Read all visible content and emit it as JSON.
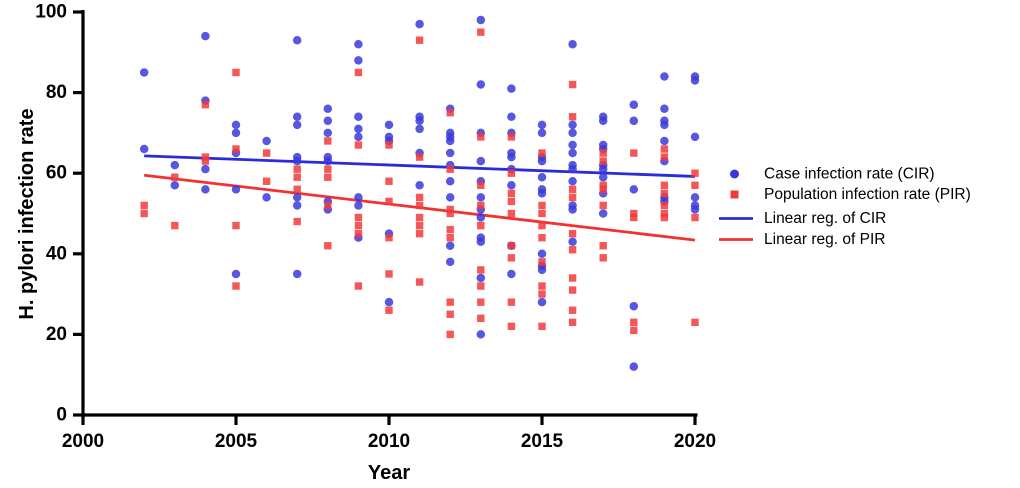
{
  "figure": {
    "background": "#ffffff"
  },
  "colors": {
    "cir_marker": "#3A3AD9",
    "pir_marker": "#F23939",
    "cir_line": "#2B2BD9",
    "pir_line": "#F23232",
    "axis": "#000000"
  },
  "legend": [
    {
      "key": "cir",
      "marker": "dot",
      "color": "#3A3AD9",
      "label": "Case infection rate (CIR)"
    },
    {
      "key": "pir",
      "marker": "square",
      "color": "#F23939",
      "label": "Population infection rate (PIR)"
    },
    {
      "key": "cir-reg",
      "marker": "line",
      "color": "#2B2BD9",
      "label": "Linear reg. of CIR"
    },
    {
      "key": "pir-reg",
      "marker": "line",
      "color": "#F23232",
      "label": "Linear reg. of PIR"
    }
  ],
  "chart_data": {
    "type": "scatter",
    "title": "",
    "xlabel": "Year",
    "ylabel": "H. pylori infection rate",
    "xlim": [
      2000,
      2020
    ],
    "ylim": [
      0,
      100
    ],
    "x_ticks": [
      2000,
      2005,
      2010,
      2015,
      2020
    ],
    "y_ticks": [
      0,
      20,
      40,
      60,
      80,
      100
    ],
    "grid": false,
    "legend_position": "right",
    "series": [
      {
        "name": "Case infection rate (CIR)",
        "type": "scatter",
        "marker": "circle",
        "color": "#3A3AD9",
        "points": [
          [
            2002,
            85
          ],
          [
            2002,
            66
          ],
          [
            2003,
            62
          ],
          [
            2003,
            57
          ],
          [
            2004,
            94
          ],
          [
            2004,
            78
          ],
          [
            2004,
            61
          ],
          [
            2004,
            56
          ],
          [
            2005,
            72
          ],
          [
            2005,
            70
          ],
          [
            2005,
            65
          ],
          [
            2005,
            56
          ],
          [
            2005,
            35
          ],
          [
            2006,
            68
          ],
          [
            2006,
            54
          ],
          [
            2007,
            93
          ],
          [
            2007,
            74
          ],
          [
            2007,
            72
          ],
          [
            2007,
            64
          ],
          [
            2007,
            63
          ],
          [
            2007,
            54
          ],
          [
            2007,
            52
          ],
          [
            2007,
            35
          ],
          [
            2008,
            76
          ],
          [
            2008,
            73
          ],
          [
            2008,
            70
          ],
          [
            2008,
            64
          ],
          [
            2008,
            63
          ],
          [
            2008,
            53
          ],
          [
            2008,
            51
          ],
          [
            2009,
            92
          ],
          [
            2009,
            88
          ],
          [
            2009,
            74
          ],
          [
            2009,
            71
          ],
          [
            2009,
            69
          ],
          [
            2009,
            54
          ],
          [
            2009,
            52
          ],
          [
            2009,
            44
          ],
          [
            2010,
            72
          ],
          [
            2010,
            69
          ],
          [
            2010,
            68
          ],
          [
            2010,
            45
          ],
          [
            2010,
            28
          ],
          [
            2011,
            97
          ],
          [
            2011,
            74
          ],
          [
            2011,
            73
          ],
          [
            2011,
            71
          ],
          [
            2011,
            65
          ],
          [
            2011,
            57
          ],
          [
            2012,
            76
          ],
          [
            2012,
            70
          ],
          [
            2012,
            69
          ],
          [
            2012,
            68
          ],
          [
            2012,
            65
          ],
          [
            2012,
            62
          ],
          [
            2012,
            58
          ],
          [
            2012,
            54
          ],
          [
            2012,
            42
          ],
          [
            2012,
            38
          ],
          [
            2013,
            98
          ],
          [
            2013,
            82
          ],
          [
            2013,
            70
          ],
          [
            2013,
            63
          ],
          [
            2013,
            58
          ],
          [
            2013,
            54
          ],
          [
            2013,
            51
          ],
          [
            2013,
            49
          ],
          [
            2013,
            44
          ],
          [
            2013,
            43
          ],
          [
            2013,
            34
          ],
          [
            2013,
            20
          ],
          [
            2014,
            81
          ],
          [
            2014,
            74
          ],
          [
            2014,
            70
          ],
          [
            2014,
            65
          ],
          [
            2014,
            64
          ],
          [
            2014,
            61
          ],
          [
            2014,
            57
          ],
          [
            2014,
            42
          ],
          [
            2014,
            35
          ],
          [
            2015,
            72
          ],
          [
            2015,
            70
          ],
          [
            2015,
            64
          ],
          [
            2015,
            63
          ],
          [
            2015,
            59
          ],
          [
            2015,
            56
          ],
          [
            2015,
            55
          ],
          [
            2015,
            40
          ],
          [
            2015,
            37
          ],
          [
            2015,
            36
          ],
          [
            2015,
            28
          ],
          [
            2016,
            92
          ],
          [
            2016,
            72
          ],
          [
            2016,
            70
          ],
          [
            2016,
            67
          ],
          [
            2016,
            65
          ],
          [
            2016,
            62
          ],
          [
            2016,
            61
          ],
          [
            2016,
            58
          ],
          [
            2016,
            52
          ],
          [
            2016,
            51
          ],
          [
            2016,
            43
          ],
          [
            2017,
            74
          ],
          [
            2017,
            73
          ],
          [
            2017,
            67
          ],
          [
            2017,
            66
          ],
          [
            2017,
            62
          ],
          [
            2017,
            61
          ],
          [
            2017,
            59
          ],
          [
            2017,
            55
          ],
          [
            2017,
            50
          ],
          [
            2018,
            77
          ],
          [
            2018,
            73
          ],
          [
            2018,
            56
          ],
          [
            2018,
            27
          ],
          [
            2018,
            12
          ],
          [
            2019,
            84
          ],
          [
            2019,
            76
          ],
          [
            2019,
            73
          ],
          [
            2019,
            72
          ],
          [
            2019,
            68
          ],
          [
            2019,
            63
          ],
          [
            2019,
            54
          ],
          [
            2019,
            53
          ],
          [
            2020,
            84
          ],
          [
            2020,
            83
          ],
          [
            2020,
            69
          ],
          [
            2020,
            54
          ],
          [
            2020,
            52
          ],
          [
            2020,
            51
          ]
        ]
      },
      {
        "name": "Population infection rate (PIR)",
        "type": "scatter",
        "marker": "square",
        "color": "#F23939",
        "points": [
          [
            2002,
            52
          ],
          [
            2002,
            50
          ],
          [
            2003,
            59
          ],
          [
            2003,
            47
          ],
          [
            2004,
            77
          ],
          [
            2004,
            64
          ],
          [
            2004,
            63
          ],
          [
            2005,
            85
          ],
          [
            2005,
            66
          ],
          [
            2005,
            47
          ],
          [
            2005,
            32
          ],
          [
            2006,
            65
          ],
          [
            2006,
            58
          ],
          [
            2007,
            61
          ],
          [
            2007,
            59
          ],
          [
            2007,
            56
          ],
          [
            2007,
            48
          ],
          [
            2008,
            68
          ],
          [
            2008,
            61
          ],
          [
            2008,
            59
          ],
          [
            2008,
            52
          ],
          [
            2008,
            42
          ],
          [
            2009,
            85
          ],
          [
            2009,
            67
          ],
          [
            2009,
            49
          ],
          [
            2009,
            47
          ],
          [
            2009,
            45
          ],
          [
            2009,
            32
          ],
          [
            2010,
            67
          ],
          [
            2010,
            58
          ],
          [
            2010,
            53
          ],
          [
            2010,
            44
          ],
          [
            2010,
            35
          ],
          [
            2010,
            26
          ],
          [
            2011,
            93
          ],
          [
            2011,
            64
          ],
          [
            2011,
            54
          ],
          [
            2011,
            52
          ],
          [
            2011,
            49
          ],
          [
            2011,
            47
          ],
          [
            2011,
            45
          ],
          [
            2011,
            33
          ],
          [
            2012,
            75
          ],
          [
            2012,
            61
          ],
          [
            2012,
            51
          ],
          [
            2012,
            50
          ],
          [
            2012,
            46
          ],
          [
            2012,
            44
          ],
          [
            2012,
            28
          ],
          [
            2012,
            25
          ],
          [
            2012,
            20
          ],
          [
            2013,
            95
          ],
          [
            2013,
            69
          ],
          [
            2013,
            57
          ],
          [
            2013,
            52
          ],
          [
            2013,
            47
          ],
          [
            2013,
            36
          ],
          [
            2013,
            32
          ],
          [
            2013,
            28
          ],
          [
            2013,
            24
          ],
          [
            2014,
            69
          ],
          [
            2014,
            60
          ],
          [
            2014,
            55
          ],
          [
            2014,
            53
          ],
          [
            2014,
            50
          ],
          [
            2014,
            42
          ],
          [
            2014,
            39
          ],
          [
            2014,
            28
          ],
          [
            2014,
            22
          ],
          [
            2015,
            65
          ],
          [
            2015,
            52
          ],
          [
            2015,
            50
          ],
          [
            2015,
            47
          ],
          [
            2015,
            44
          ],
          [
            2015,
            38
          ],
          [
            2015,
            32
          ],
          [
            2015,
            30
          ],
          [
            2015,
            22
          ],
          [
            2016,
            82
          ],
          [
            2016,
            74
          ],
          [
            2016,
            56
          ],
          [
            2016,
            54
          ],
          [
            2016,
            45
          ],
          [
            2016,
            41
          ],
          [
            2016,
            34
          ],
          [
            2016,
            31
          ],
          [
            2016,
            26
          ],
          [
            2016,
            23
          ],
          [
            2017,
            65
          ],
          [
            2017,
            63
          ],
          [
            2017,
            57
          ],
          [
            2017,
            56
          ],
          [
            2017,
            52
          ],
          [
            2017,
            42
          ],
          [
            2017,
            39
          ],
          [
            2018,
            65
          ],
          [
            2018,
            50
          ],
          [
            2018,
            49
          ],
          [
            2018,
            23
          ],
          [
            2018,
            21
          ],
          [
            2019,
            66
          ],
          [
            2019,
            64
          ],
          [
            2019,
            57
          ],
          [
            2019,
            55
          ],
          [
            2019,
            52
          ],
          [
            2019,
            50
          ],
          [
            2019,
            49
          ],
          [
            2020,
            60
          ],
          [
            2020,
            57
          ],
          [
            2020,
            49
          ],
          [
            2020,
            23
          ]
        ]
      },
      {
        "name": "Linear reg. of CIR",
        "type": "line",
        "color": "#2B2BD9",
        "x": [
          2002,
          2020
        ],
        "y": [
          64.3,
          59.2
        ]
      },
      {
        "name": "Linear reg. of PIR",
        "type": "line",
        "color": "#F23232",
        "x": [
          2002,
          2020
        ],
        "y": [
          59.5,
          43.4
        ]
      }
    ]
  }
}
